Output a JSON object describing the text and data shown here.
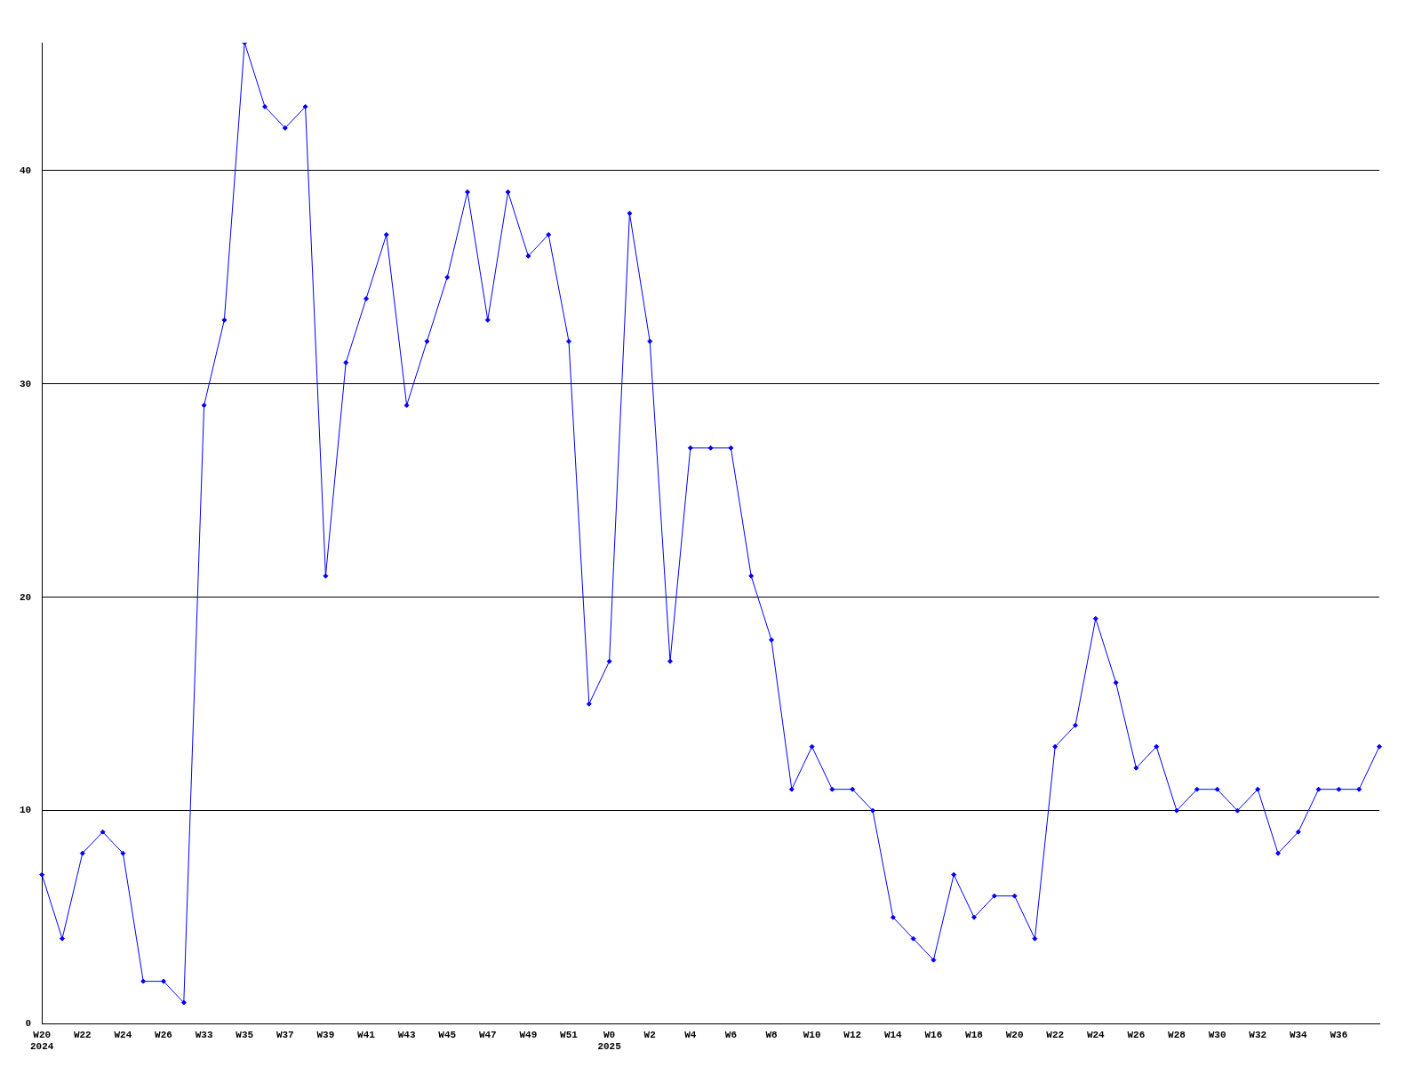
{
  "chart_data": {
    "type": "line",
    "categories": [
      "W20\n2024",
      null,
      "W22",
      null,
      "W24",
      null,
      "W26",
      null,
      "W33",
      null,
      "W35",
      null,
      "W37",
      null,
      "W39",
      null,
      "W41",
      null,
      "W43",
      null,
      "W45",
      null,
      "W47",
      null,
      "W49",
      null,
      "W51",
      null,
      "W0\n2025",
      null,
      "W2",
      null,
      "W4",
      null,
      "W6",
      null,
      "W8",
      null,
      "W10",
      null,
      "W12",
      null,
      "W14",
      null,
      "W16",
      null,
      "W18",
      null,
      "W20",
      null,
      "W22",
      null,
      "W24",
      null,
      "W26",
      null,
      "W28",
      null,
      "W30",
      null,
      "W32",
      null,
      "W34",
      null,
      "W36",
      null,
      null
    ],
    "series": [
      {
        "color": "#0000ff",
        "values": [
          7,
          4,
          8,
          9,
          8,
          2,
          2,
          1,
          29,
          33,
          46,
          43,
          42,
          43,
          21,
          31,
          34,
          37,
          29,
          32,
          35,
          39,
          33,
          39,
          36,
          37,
          32,
          15,
          17,
          38,
          32,
          17,
          27,
          27,
          27,
          21,
          18,
          11,
          13,
          11,
          11,
          10,
          5,
          4,
          3,
          7,
          5,
          6,
          6,
          4,
          13,
          14,
          19,
          16,
          12,
          13,
          10,
          11,
          11,
          10,
          11,
          8,
          9,
          11,
          11,
          11,
          13
        ]
      }
    ],
    "ylim": [
      0,
      46
    ],
    "yticks": [
      0,
      10,
      20,
      30,
      40
    ],
    "grid": "y",
    "legend": false,
    "marker": "diamond",
    "line_style": "solid"
  }
}
